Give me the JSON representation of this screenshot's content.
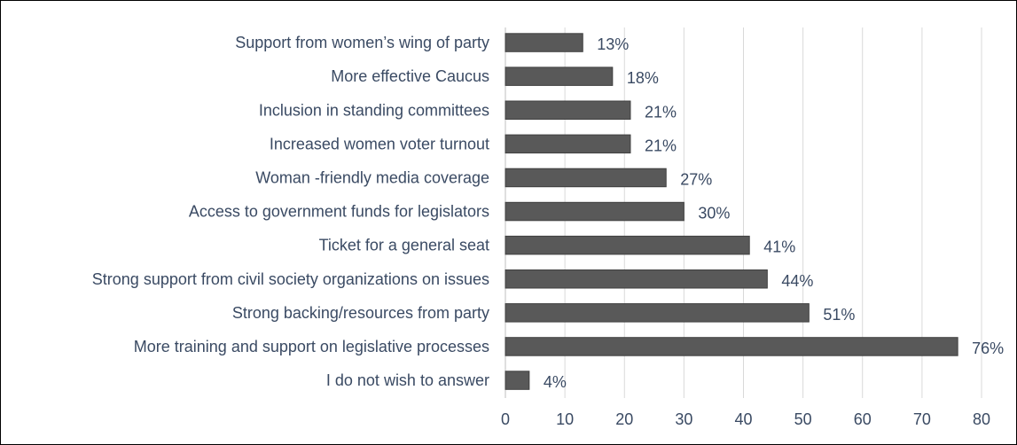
{
  "chart_data": {
    "type": "bar",
    "orientation": "horizontal",
    "title": "",
    "xlabel": "",
    "ylabel": "",
    "categories": [
      "Support from women’s wing of party",
      "More effective Caucus",
      "Inclusion in standing committees ",
      "Increased women voter turnout",
      "Woman -friendly media coverage",
      "Access to government funds for legislators",
      "Ticket for a general seat",
      "Strong support from civil society organizations on issues",
      "Strong backing/resources from party ",
      "More training and support on legislative processes",
      "I do not wish to answer"
    ],
    "values": [
      13,
      18,
      21,
      21,
      27,
      30,
      41,
      44,
      51,
      76,
      4
    ],
    "data_labels": [
      "13%",
      "18%",
      "21%",
      "21%",
      "27%",
      "30%",
      "41%",
      "44%",
      "51%",
      "76%",
      "4%"
    ],
    "xlim": [
      0,
      80
    ],
    "xticks": [
      0,
      10,
      20,
      30,
      40,
      50,
      60,
      70,
      80
    ],
    "grid": true,
    "legend": "none",
    "colors": {
      "bar_fill": "#595959",
      "bar_edge": "#404040",
      "text": "#3a4a63",
      "grid": "#d9d9d9"
    }
  }
}
